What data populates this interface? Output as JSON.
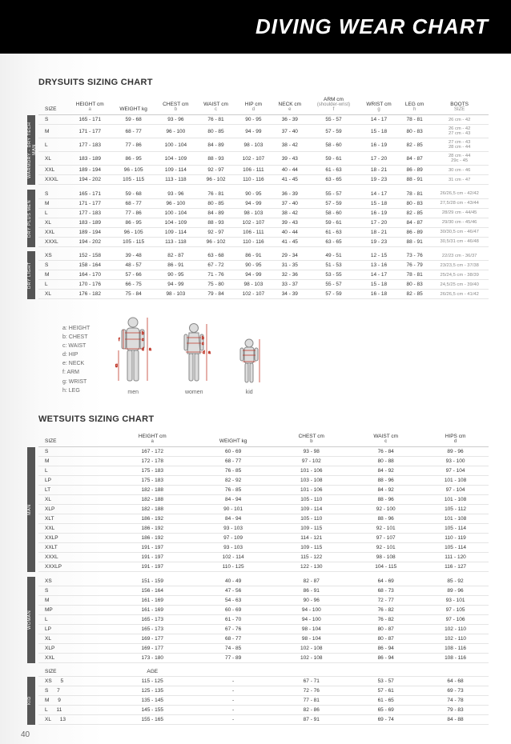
{
  "page_title": "DIVING WEAR CHART",
  "drysuits_heading": "DRYSUITS SIZING CHART",
  "wetsuits_heading": "WETSUITS SIZING CHART",
  "page_number": "40",
  "dry_headers": [
    {
      "label": "SIZE",
      "sub": ""
    },
    {
      "label": "HEIGHT cm",
      "sub": "a"
    },
    {
      "label": "WEIGHT kg",
      "sub": ""
    },
    {
      "label": "CHEST cm",
      "sub": "b"
    },
    {
      "label": "WAIST cm",
      "sub": "c"
    },
    {
      "label": "HIP cm",
      "sub": "d"
    },
    {
      "label": "NECK cm",
      "sub": "e"
    },
    {
      "label": "ARM cm",
      "sub": "(shoulder-wrist)\nf"
    },
    {
      "label": "WRIST cm",
      "sub": "g"
    },
    {
      "label": "LEG cm",
      "sub": "h"
    },
    {
      "label": "BOOTS",
      "sub": "SIZE"
    }
  ],
  "dry_groups": [
    {
      "label": "WARMDRY - DRY TECH MAN",
      "rows": [
        [
          "S",
          "165 - 171",
          "59 - 68",
          "93 - 96",
          "76 - 81",
          "90 - 95",
          "36 - 39",
          "55 - 57",
          "14 - 17",
          "78 - 81",
          "26 cm - 42"
        ],
        [
          "M",
          "171 - 177",
          "68 - 77",
          "96 - 100",
          "80 - 85",
          "94 - 99",
          "37 - 40",
          "57 - 59",
          "15 - 18",
          "80 - 83",
          "26 cm - 42\n27 cm - 43"
        ],
        [
          "L",
          "177 - 183",
          "77 - 86",
          "100 - 104",
          "84 - 89",
          "98 - 103",
          "38 - 42",
          "58 - 60",
          "16 - 19",
          "82 - 85",
          "27 cm - 43\n28 cm - 44"
        ],
        [
          "XL",
          "183 - 189",
          "86 - 95",
          "104 - 109",
          "88 - 93",
          "102 - 107",
          "39 - 43",
          "59 - 61",
          "17 - 20",
          "84 - 87",
          "28 cm - 44\n29c - 45"
        ],
        [
          "XXL",
          "189 - 194",
          "96 - 105",
          "109 - 114",
          "92 - 97",
          "106 - 111",
          "40 - 44",
          "61 - 63",
          "18 - 21",
          "86 - 89",
          "30 cm - 46"
        ],
        [
          "XXXL",
          "194 - 202",
          "105 - 115",
          "113 - 118",
          "96 - 102",
          "110 - 116",
          "41 - 45",
          "63 - 65",
          "19 - 23",
          "88 - 91",
          "31 cm - 47"
        ]
      ]
    },
    {
      "label": "DRY PLUS MEN",
      "rows": [
        [
          "S",
          "165 - 171",
          "59 - 68",
          "93 - 96",
          "76 - 81",
          "90 - 95",
          "36 - 39",
          "55 - 57",
          "14 - 17",
          "78 - 81",
          "26/26,5 cm - 42/42"
        ],
        [
          "M",
          "171 - 177",
          "68 - 77",
          "96 - 100",
          "80 - 85",
          "94 - 99",
          "37 - 40",
          "57 - 59",
          "15 - 18",
          "80 - 83",
          "27,5/28 cm - 43/44"
        ],
        [
          "L",
          "177 - 183",
          "77 - 86",
          "100 - 104",
          "84 - 89",
          "98 - 103",
          "38 - 42",
          "58 - 60",
          "16 - 19",
          "82 - 85",
          "28/29 cm - 44/45"
        ],
        [
          "XL",
          "183 - 189",
          "86 - 95",
          "104 - 109",
          "88 - 93",
          "102 - 107",
          "39 - 43",
          "59 - 61",
          "17 - 20",
          "84 - 87",
          "29/30 cm - 45/46"
        ],
        [
          "XXL",
          "189 - 194",
          "96 - 105",
          "109 - 114",
          "92 - 97",
          "106 - 111",
          "40 - 44",
          "61 - 63",
          "18 - 21",
          "86 - 89",
          "30/30,5 cm - 46/47"
        ],
        [
          "XXXL",
          "194 - 202",
          "105 - 115",
          "113 - 118",
          "96 - 102",
          "110 - 116",
          "41 - 45",
          "63 - 65",
          "19 - 23",
          "88 - 91",
          "30,5/31 cm - 46/48"
        ]
      ]
    },
    {
      "label": "DRY LIGHT",
      "rows": [
        [
          "XS",
          "152 - 158",
          "39 - 48",
          "82 - 87",
          "63 - 68",
          "86 - 91",
          "29 - 34",
          "49 - 51",
          "12 - 15",
          "73 - 76",
          "22/23 cm - 36/37"
        ],
        [
          "S",
          "158 - 164",
          "48 - 57",
          "86 - 91",
          "67 - 72",
          "90 - 95",
          "31 - 35",
          "51 - 53",
          "13 - 16",
          "76 - 79",
          "23/23,5 cm - 37/38"
        ],
        [
          "M",
          "164 - 170",
          "57 - 66",
          "90 - 95",
          "71 - 76",
          "94 - 99",
          "32 - 36",
          "53 - 55",
          "14 - 17",
          "78 - 81",
          "25/24,5 cm - 38/39"
        ],
        [
          "L",
          "170 - 176",
          "66 - 75",
          "94 - 99",
          "75 - 80",
          "98 - 103",
          "33 - 37",
          "55 - 57",
          "15 - 18",
          "80 - 83",
          "24,5/25 cm - 39/40"
        ],
        [
          "XL",
          "176 - 182",
          "75 - 84",
          "98 - 103",
          "79 - 84",
          "102 - 107",
          "34 - 39",
          "57 - 59",
          "16 - 18",
          "82 - 85",
          "26/26,5 cm - 41/42"
        ]
      ]
    }
  ],
  "legend_lines": [
    "a: HEIGHT",
    "b: CHEST",
    "c: WAIST",
    "d: HIP",
    "e: NECK",
    "f: ARM",
    "g: WRIST",
    "h: LEG"
  ],
  "fig_labels": [
    "men",
    "women",
    "kid"
  ],
  "wet_headers": [
    {
      "label": "SIZE",
      "sub": ""
    },
    {
      "label": "HEIGHT cm",
      "sub": "a"
    },
    {
      "label": "WEIGHT kg",
      "sub": ""
    },
    {
      "label": "CHEST cm",
      "sub": "b"
    },
    {
      "label": "WAIST cm",
      "sub": "c"
    },
    {
      "label": "HIPS cm",
      "sub": "d"
    }
  ],
  "wet_groups": [
    {
      "label": "MAN",
      "rows": [
        [
          "S",
          "167 - 172",
          "60 - 69",
          "93 - 98",
          "76 - 84",
          "89 - 96"
        ],
        [
          "M",
          "172 - 178",
          "68 - 77",
          "97 - 102",
          "80 - 88",
          "93 - 100"
        ],
        [
          "L",
          "175 - 183",
          "76 - 85",
          "101 - 106",
          "84 - 92",
          "97 - 104"
        ],
        [
          "LP",
          "175 - 183",
          "82 - 92",
          "103 - 108",
          "88 - 96",
          "101 - 108"
        ],
        [
          "LT",
          "182 - 188",
          "76 - 85",
          "101 - 106",
          "84 - 92",
          "97 - 104"
        ],
        [
          "XL",
          "182 - 188",
          "84 - 94",
          "105 - 110",
          "88 - 96",
          "101 - 108"
        ],
        [
          "XLP",
          "182 - 188",
          "90 - 101",
          "109 - 114",
          "92 - 100",
          "105 - 112"
        ],
        [
          "XLT",
          "186 - 192",
          "84 - 94",
          "105 - 110",
          "88 - 96",
          "101 - 108"
        ],
        [
          "XXL",
          "186 - 192",
          "93 - 103",
          "109 - 115",
          "92 - 101",
          "105 - 114"
        ],
        [
          "XXLP",
          "186 - 192",
          "97 - 109",
          "114 - 121",
          "97 - 107",
          "110 - 119"
        ],
        [
          "XXLT",
          "191 - 197",
          "93 - 103",
          "109 - 115",
          "92 - 101",
          "105 - 114"
        ],
        [
          "XXXL",
          "191 - 197",
          "102 - 114",
          "115 - 122",
          "98 - 108",
          "111 - 120"
        ],
        [
          "XXXLP",
          "191 - 197",
          "110 - 125",
          "122 - 130",
          "104 - 115",
          "116 - 127"
        ]
      ]
    },
    {
      "label": "WOMAN",
      "rows": [
        [
          "XS",
          "151 - 159",
          "40 - 49",
          "82 - 87",
          "64 - 69",
          "85 - 92"
        ],
        [
          "S",
          "156 - 164",
          "47 - 56",
          "86 - 91",
          "68 - 73",
          "89 - 96"
        ],
        [
          "M",
          "161 - 169",
          "54 - 63",
          "90 - 96",
          "72 - 77",
          "93 - 101"
        ],
        [
          "MP",
          "161 - 169",
          "60 - 69",
          "94 - 100",
          "76 - 82",
          "97 - 105"
        ],
        [
          "L",
          "165 - 173",
          "61 - 70",
          "94 - 100",
          "76 - 82",
          "97 - 106"
        ],
        [
          "LP",
          "165 - 173",
          "67 - 76",
          "98 - 104",
          "80 - 87",
          "102 - 110"
        ],
        [
          "XL",
          "169 - 177",
          "68 - 77",
          "98 - 104",
          "80 - 87",
          "102 - 110"
        ],
        [
          "XLP",
          "169 - 177",
          "74 - 85",
          "102 - 108",
          "86 - 94",
          "108 - 116"
        ],
        [
          "XXL",
          "173 - 180",
          "77 - 89",
          "102 - 108",
          "86 - 94",
          "108 - 116"
        ]
      ]
    },
    {
      "label": "KID",
      "header": [
        "SIZE",
        "",
        "AGE",
        "",
        "",
        "",
        ""
      ],
      "rows": [
        [
          "XS",
          "5",
          "115 - 125",
          "-",
          "67 - 71",
          "53 - 57",
          "64 - 68"
        ],
        [
          "S",
          "7",
          "125 - 135",
          "-",
          "72 - 76",
          "57 - 61",
          "69 - 73"
        ],
        [
          "M",
          "9",
          "135 - 145",
          "-",
          "77 - 81",
          "61 - 65",
          "74 - 78"
        ],
        [
          "L",
          "11",
          "145 - 155",
          "-",
          "82 - 86",
          "65 - 69",
          "79 - 83"
        ],
        [
          "XL",
          "13",
          "155 - 165",
          "-",
          "87 - 91",
          "69 - 74",
          "84 - 88"
        ]
      ]
    }
  ]
}
